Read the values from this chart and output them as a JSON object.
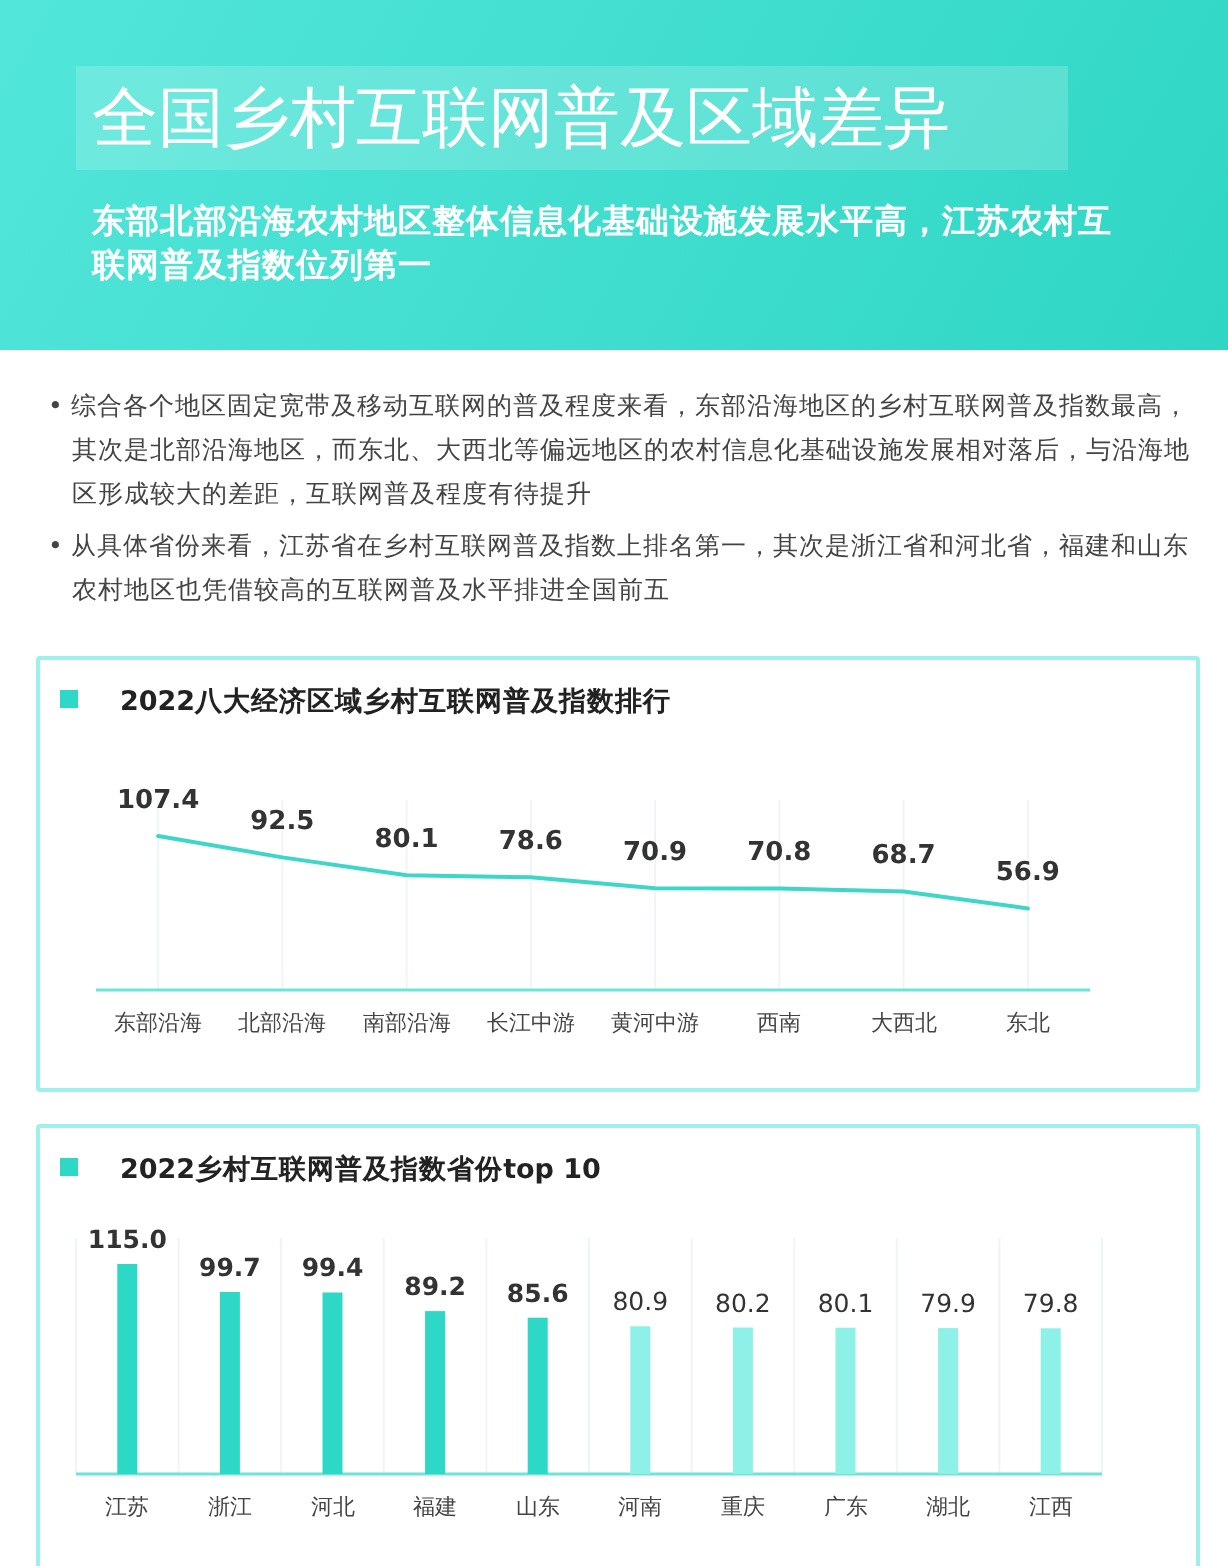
{
  "chart_data": [
    {
      "type": "other",
      "title": "全国乡村互联网普及区域差异",
      "subtitle": "东部北部沿海农村地区整体信息化基础设施发展水平高，江苏农村互联网普及指数位列第一",
      "annotations": [
        "• 综合各个地区固定宽带及移动互联网的普及程度来看，东部沿海地区的乡村互联网普及指数最高，其次是北部沿海地区，而东北、大西北等偏远地区的农村信息化基础设施发展相对落后，与沿海地区形成较大的差距，互联网普及程度有待提升",
        "• 从具体省份来看，江苏省在乡村互联网普及指数上排名第一，其次是浙江省和河北省，福建和山东农村地区也凭借较高的互联网普及水平排进全国前五"
      ]
    },
    {
      "type": "line",
      "title": "2022八大经济区域乡村互联网普及指数排行",
      "categories": [
        "东部沿海",
        "北部沿海",
        "南部沿海",
        "长江中游",
        "黄河中游",
        "西南",
        "大西北",
        "东北"
      ],
      "values": [
        107.4,
        92.5,
        80.1,
        78.6,
        70.9,
        70.8,
        68.7,
        56.9
      ],
      "color": "#3dd6c8",
      "data_labels": true,
      "grid": "x",
      "marker": "none",
      "line_style": "solid",
      "tick_labels": "x"
    },
    {
      "type": "bar",
      "title": "2022乡村互联网普及指数省份top 10",
      "categories": [
        "江苏",
        "浙江",
        "河北",
        "福建",
        "山东",
        "河南",
        "重庆",
        "广东",
        "湖北",
        "江西"
      ],
      "values": [
        115.0,
        99.7,
        99.4,
        89.2,
        85.6,
        80.9,
        80.2,
        80.1,
        79.9,
        79.8
      ],
      "value_labels": [
        "115.0",
        "99.7",
        "99.4",
        "89.2",
        "85.6",
        "80.9",
        "80.2",
        "80.1",
        "79.9",
        "79.8"
      ],
      "colors": [
        "#2ed8c6",
        "#2ed8c6",
        "#2ed8c6",
        "#2ed8c6",
        "#2ed8c6",
        "#8ef1e8",
        "#8ef1e8",
        "#8ef1e8",
        "#8ef1e8",
        "#8ef1e8"
      ],
      "grid": "x",
      "tick_labels": "x"
    }
  ]
}
